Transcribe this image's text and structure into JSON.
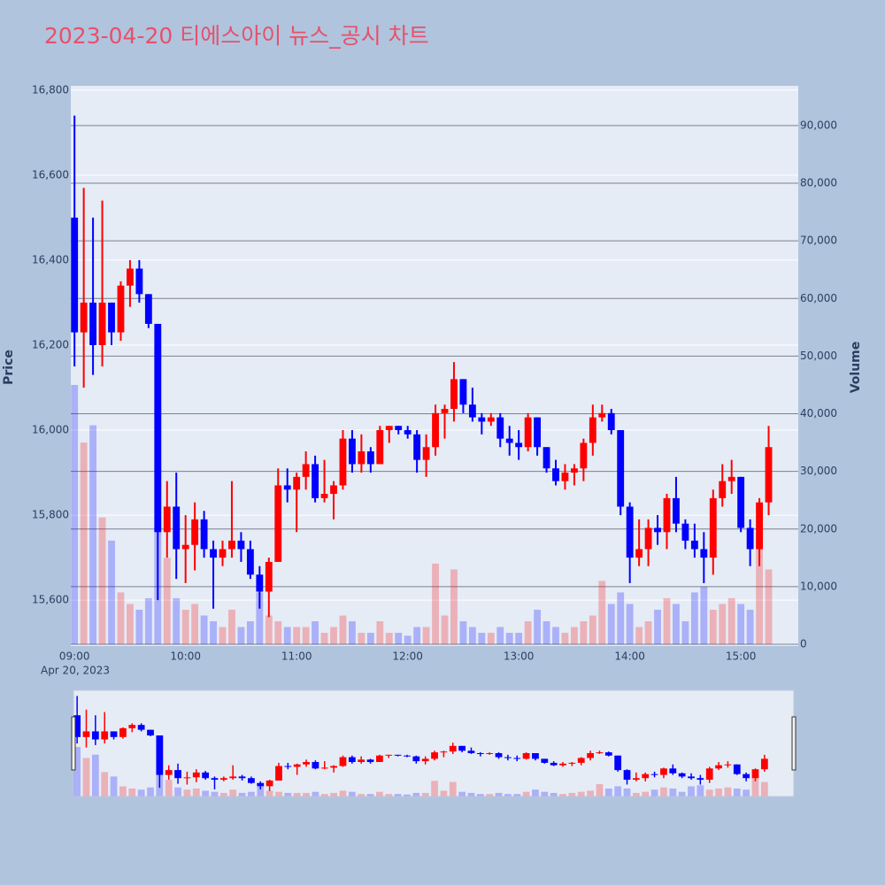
{
  "chart_data": {
    "type": "candlestick",
    "title": "2023-04-20 티에스아이 뉴스_공시 차트",
    "date_label": "Apr 20, 2023",
    "y_label": "Price",
    "y2_label": "Volume",
    "increasing_color": "#ff0000",
    "decreasing_color": "#0000ff",
    "x": [
      "09:00",
      "09:05",
      "09:10",
      "09:15",
      "09:20",
      "09:25",
      "09:30",
      "09:35",
      "09:40",
      "09:45",
      "09:50",
      "09:55",
      "10:00",
      "10:05",
      "10:10",
      "10:15",
      "10:20",
      "10:25",
      "10:30",
      "10:35",
      "10:40",
      "10:45",
      "10:50",
      "10:55",
      "11:00",
      "11:05",
      "11:10",
      "11:15",
      "11:20",
      "11:25",
      "11:30",
      "11:35",
      "11:40",
      "11:45",
      "11:50",
      "11:55",
      "12:00",
      "12:05",
      "12:10",
      "12:15",
      "12:20",
      "12:25",
      "12:30",
      "12:35",
      "12:40",
      "12:45",
      "12:50",
      "12:55",
      "13:00",
      "13:05",
      "13:10",
      "13:15",
      "13:20",
      "13:25",
      "13:30",
      "13:35",
      "13:40",
      "13:45",
      "13:50",
      "13:55",
      "14:00",
      "14:05",
      "14:10",
      "14:15",
      "14:20",
      "14:25",
      "14:30",
      "14:35",
      "14:40",
      "14:45",
      "14:50",
      "14:55",
      "15:00",
      "15:05",
      "15:10",
      "15:15"
    ],
    "open": [
      16500,
      16230,
      16300,
      16200,
      16300,
      16230,
      16340,
      16380,
      16320,
      16250,
      15760,
      15820,
      15720,
      15730,
      15790,
      15720,
      15700,
      15720,
      15740,
      15720,
      15660,
      15620,
      15690,
      15870,
      15860,
      15890,
      15920,
      15840,
      15850,
      15870,
      15980,
      15920,
      15950,
      15920,
      16000,
      16010,
      16000,
      15990,
      15930,
      15960,
      16040,
      16050,
      16120,
      16060,
      16030,
      16020,
      16030,
      15980,
      15970,
      15960,
      16030,
      15960,
      15910,
      15880,
      15900,
      15910,
      15970,
      16030,
      16040,
      16000,
      15820,
      15700,
      15720,
      15770,
      15760,
      15840,
      15780,
      15740,
      15720,
      15700,
      15840,
      15880,
      15890,
      15770,
      15720,
      15830
    ],
    "high": [
      16740,
      16570,
      16500,
      16540,
      16300,
      16350,
      16400,
      16400,
      16320,
      16250,
      15880,
      15900,
      15800,
      15830,
      15810,
      15740,
      15740,
      15880,
      15760,
      15740,
      15680,
      15700,
      15910,
      15910,
      15900,
      15950,
      15940,
      15930,
      15880,
      16000,
      16000,
      15990,
      15960,
      16010,
      16010,
      16010,
      16010,
      16000,
      15990,
      16060,
      16060,
      16160,
      16120,
      16100,
      16040,
      16040,
      16040,
      16010,
      16000,
      16040,
      16030,
      15960,
      15930,
      15920,
      15920,
      15980,
      16060,
      16060,
      16050,
      16000,
      15830,
      15790,
      15790,
      15800,
      15850,
      15890,
      15790,
      15780,
      15760,
      15860,
      15920,
      15930,
      15890,
      15790,
      15840,
      16010
    ],
    "low": [
      16150,
      16100,
      16130,
      16150,
      16200,
      16210,
      16290,
      16300,
      16240,
      15600,
      15700,
      15650,
      15640,
      15670,
      15700,
      15580,
      15680,
      15700,
      15690,
      15650,
      15580,
      15560,
      15690,
      15830,
      15760,
      15860,
      15830,
      15830,
      15790,
      15860,
      15900,
      15900,
      15900,
      15920,
      15970,
      15990,
      15980,
      15900,
      15890,
      15940,
      15980,
      16020,
      16040,
      16020,
      15990,
      16010,
      15960,
      15940,
      15930,
      15950,
      15940,
      15900,
      15870,
      15860,
      15870,
      15880,
      15940,
      16020,
      15990,
      15800,
      15640,
      15680,
      15680,
      15730,
      15720,
      15760,
      15720,
      15700,
      15640,
      15660,
      15820,
      15850,
      15760,
      15680,
      15680,
      15800
    ],
    "close": [
      16230,
      16300,
      16200,
      16300,
      16230,
      16340,
      16380,
      16320,
      16250,
      15760,
      15820,
      15720,
      15730,
      15790,
      15720,
      15700,
      15720,
      15740,
      15720,
      15660,
      15620,
      15690,
      15870,
      15860,
      15890,
      15920,
      15840,
      15850,
      15870,
      15980,
      15920,
      15950,
      15920,
      16000,
      16010,
      16000,
      15990,
      15930,
      15960,
      16040,
      16050,
      16120,
      16060,
      16030,
      16020,
      16030,
      15980,
      15970,
      15960,
      16030,
      15960,
      15910,
      15880,
      15900,
      15910,
      15970,
      16030,
      16040,
      16000,
      15820,
      15700,
      15720,
      15770,
      15760,
      15840,
      15780,
      15740,
      15720,
      15700,
      15840,
      15880,
      15890,
      15770,
      15720,
      15830,
      15960
    ],
    "volume": [
      45000,
      35000,
      38000,
      22000,
      18000,
      9000,
      7000,
      6000,
      8000,
      52000,
      15000,
      8000,
      6000,
      7000,
      5000,
      4000,
      3000,
      6000,
      3000,
      4000,
      9000,
      5000,
      4000,
      3000,
      3000,
      3000,
      4000,
      2000,
      3000,
      5000,
      4000,
      2000,
      2000,
      4000,
      2000,
      2000,
      1500,
      3000,
      3000,
      14000,
      5000,
      13000,
      4000,
      3000,
      2000,
      2000,
      3000,
      2000,
      2000,
      4000,
      6000,
      4000,
      3000,
      2000,
      3000,
      4000,
      5000,
      11000,
      7000,
      9000,
      7000,
      3000,
      4000,
      6000,
      8000,
      7000,
      4000,
      9000,
      10000,
      6000,
      7000,
      8000,
      7000,
      6000,
      18000,
      13000
    ],
    "xlim": [
      "08:58",
      "15:31"
    ],
    "xticks": [
      "09:00",
      "10:00",
      "11:00",
      "12:00",
      "13:00",
      "14:00",
      "15:00"
    ],
    "ylim": [
      15492,
      16810
    ],
    "yticks": [
      {
        "value": 15600,
        "label": "15,600"
      },
      {
        "value": 15800,
        "label": "15,800"
      },
      {
        "value": 16000,
        "label": "16,000"
      },
      {
        "value": 16200,
        "label": "16,200"
      },
      {
        "value": 16400,
        "label": "16,400"
      },
      {
        "value": 16600,
        "label": "16,600"
      },
      {
        "value": 16800,
        "label": "16,800"
      }
    ],
    "y2lim": [
      -300,
      96900
    ],
    "y2ticks": [
      0,
      {
        "value": 10000,
        "label": "10,000"
      },
      {
        "value": 20000,
        "label": "20,000"
      },
      {
        "value": 30000,
        "label": "30,000"
      },
      {
        "value": 40000,
        "label": "40,000"
      },
      {
        "value": 50000,
        "label": "50,000"
      },
      {
        "value": 60000,
        "label": "60,000"
      },
      {
        "value": 70000,
        "label": "70,000"
      },
      {
        "value": 80000,
        "label": "80,000"
      },
      {
        "value": 90000,
        "label": "90,000"
      }
    ],
    "grid": true,
    "rangeslider": true
  }
}
